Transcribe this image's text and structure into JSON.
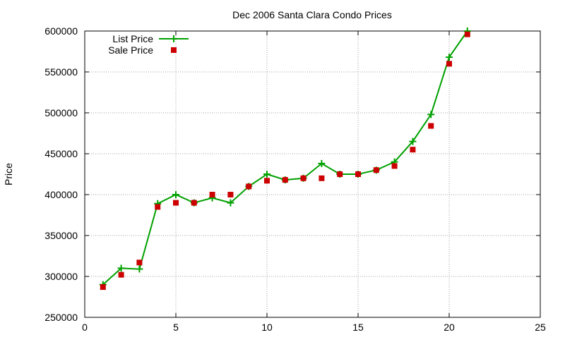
{
  "chart_data": {
    "type": "line",
    "title": "Dec 2006 Santa Clara Condo Prices",
    "xlabel": "",
    "ylabel": "Price",
    "xlim": [
      0,
      25
    ],
    "ylim": [
      250000,
      600000
    ],
    "xticks": [
      0,
      5,
      10,
      15,
      20,
      25
    ],
    "yticks": [
      250000,
      300000,
      350000,
      400000,
      450000,
      500000,
      550000,
      600000
    ],
    "xtick_labels": [
      "0",
      "5",
      "10",
      "15",
      "20",
      "25"
    ],
    "ytick_labels": [
      "250000",
      "300000",
      "350000",
      "400000",
      "450000",
      "500000",
      "550000",
      "600000"
    ],
    "grid": true,
    "legend_position": "top-left",
    "series": [
      {
        "name": "List Price",
        "style": "line-with-plus-markers",
        "color": "#00a000",
        "x": [
          1,
          2,
          3,
          4,
          5,
          6,
          7,
          8,
          9,
          10,
          11,
          12,
          13,
          14,
          15,
          16,
          17,
          18,
          19,
          20,
          21
        ],
        "values": [
          290000,
          310000,
          309000,
          389000,
          400000,
          390000,
          396000,
          390000,
          410000,
          425000,
          418000,
          420000,
          438000,
          425000,
          425000,
          430000,
          440000,
          465000,
          498000,
          568000,
          600000
        ]
      },
      {
        "name": "Sale Price",
        "style": "square-markers",
        "color": "#cc0000",
        "x": [
          1,
          2,
          3,
          4,
          5,
          6,
          7,
          8,
          9,
          10,
          11,
          12,
          13,
          14,
          15,
          16,
          17,
          18,
          19,
          20,
          21
        ],
        "values": [
          287000,
          302000,
          317000,
          385000,
          390000,
          390000,
          400000,
          400000,
          410000,
          417000,
          418000,
          420000,
          420000,
          425000,
          425000,
          430000,
          435000,
          455000,
          484000,
          560000,
          596000
        ]
      }
    ]
  }
}
